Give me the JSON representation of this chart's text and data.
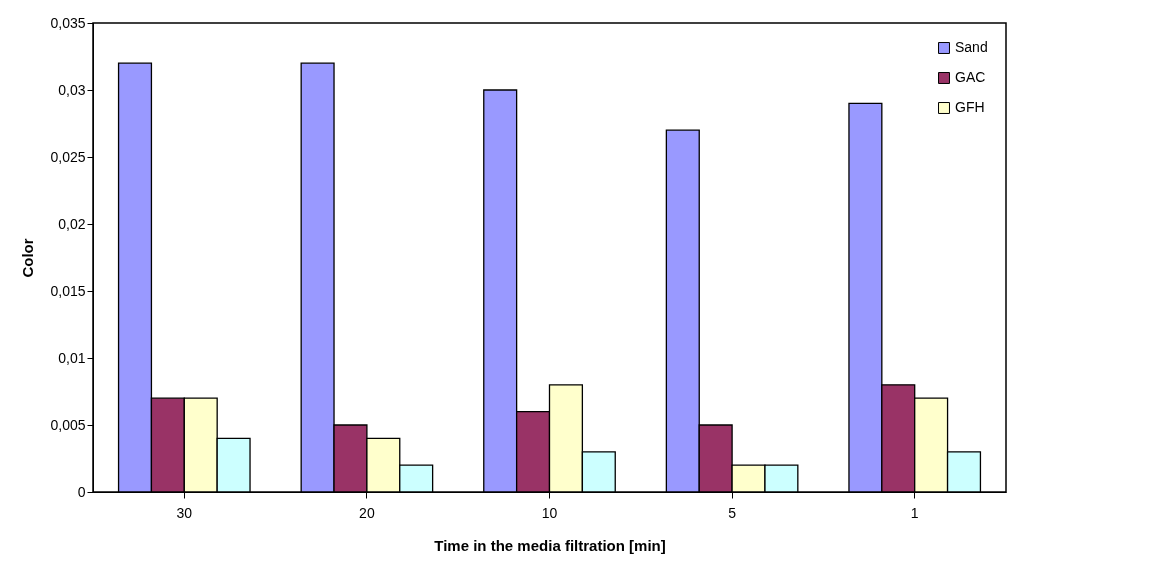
{
  "chart_data": {
    "type": "bar",
    "xlabel": "Time in the media filtration [min]",
    "ylabel": "Color",
    "categories": [
      "30",
      "20",
      "10",
      "5",
      "1"
    ],
    "series": [
      {
        "name": "Sand",
        "color": "#9999ff",
        "values": [
          0.032,
          0.032,
          0.03,
          0.027,
          0.029
        ]
      },
      {
        "name": "GAC",
        "color": "#993366",
        "values": [
          0.007,
          0.005,
          0.006,
          0.005,
          0.008
        ]
      },
      {
        "name": "GFH",
        "color": "#ffffcc",
        "values": [
          0.007,
          0.004,
          0.008,
          0.002,
          0.007
        ]
      },
      {
        "color": "#ccffff",
        "values": [
          0.004,
          0.002,
          0.003,
          0.002,
          0.003
        ]
      }
    ],
    "ylim": [
      0,
      0.035
    ],
    "yticks": [
      {
        "value": 0,
        "label": "0"
      },
      {
        "value": 0.005,
        "label": "0,005"
      },
      {
        "value": 0.01,
        "label": "0,01"
      },
      {
        "value": 0.015,
        "label": "0,015"
      },
      {
        "value": 0.02,
        "label": "0,02"
      },
      {
        "value": 0.025,
        "label": "0,025"
      },
      {
        "value": 0.03,
        "label": "0,03"
      },
      {
        "value": 0.035,
        "label": "0,035"
      }
    ],
    "grid": false,
    "legend": "top right"
  }
}
